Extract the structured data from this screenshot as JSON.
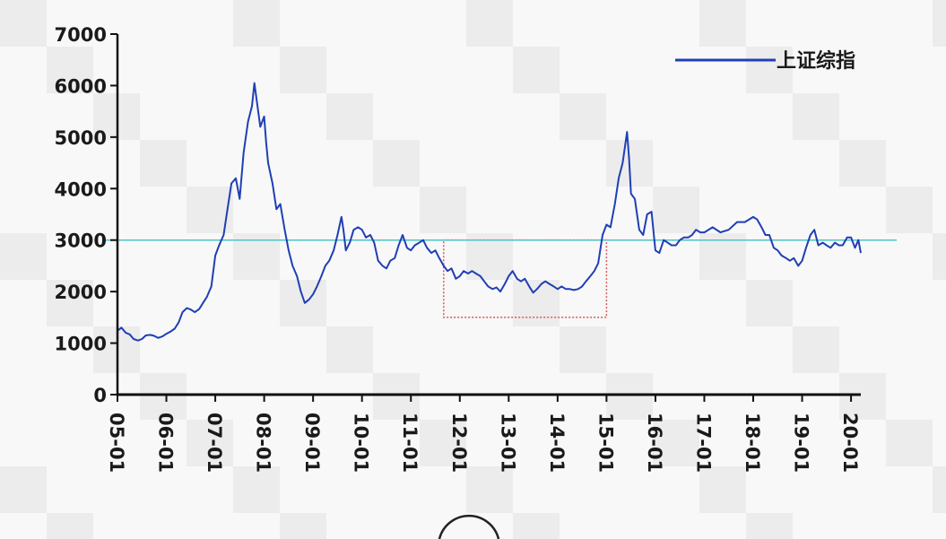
{
  "chart_data": {
    "type": "line",
    "title": "",
    "xlabel": "",
    "ylabel": "",
    "ylim": [
      0,
      7000
    ],
    "yticks": [
      0,
      1000,
      2000,
      3000,
      4000,
      5000,
      6000,
      7000
    ],
    "ytick_labels": [
      "0",
      "1000",
      "2000",
      "3000",
      "4000",
      "5000",
      "6000",
      "7000"
    ],
    "xlim": [
      2005.0,
      2020.2
    ],
    "xticks": [
      2005,
      2006,
      2007,
      2008,
      2009,
      2010,
      2011,
      2012,
      2013,
      2014,
      2015,
      2016,
      2017,
      2018,
      2019,
      2020
    ],
    "xtick_labels": [
      "05-01",
      "06-01",
      "07-01",
      "08-01",
      "09-01",
      "10-01",
      "11-01",
      "12-01",
      "13-01",
      "14-01",
      "15-01",
      "16-01",
      "17-01",
      "18-01",
      "19-01",
      "20-01"
    ],
    "grid": false,
    "legend_position": "top-right",
    "series": [
      {
        "name": "上证综指",
        "color": "#1f3fb5",
        "points": [
          [
            2005.0,
            1240
          ],
          [
            2005.08,
            1300
          ],
          [
            2005.17,
            1200
          ],
          [
            2005.25,
            1170
          ],
          [
            2005.33,
            1080
          ],
          [
            2005.42,
            1050
          ],
          [
            2005.5,
            1080
          ],
          [
            2005.58,
            1150
          ],
          [
            2005.67,
            1160
          ],
          [
            2005.75,
            1140
          ],
          [
            2005.83,
            1100
          ],
          [
            2005.92,
            1130
          ],
          [
            2006.0,
            1180
          ],
          [
            2006.08,
            1220
          ],
          [
            2006.17,
            1280
          ],
          [
            2006.25,
            1400
          ],
          [
            2006.33,
            1600
          ],
          [
            2006.42,
            1680
          ],
          [
            2006.5,
            1650
          ],
          [
            2006.58,
            1600
          ],
          [
            2006.67,
            1660
          ],
          [
            2006.75,
            1780
          ],
          [
            2006.83,
            1900
          ],
          [
            2006.92,
            2100
          ],
          [
            2007.0,
            2700
          ],
          [
            2007.08,
            2900
          ],
          [
            2007.17,
            3100
          ],
          [
            2007.25,
            3600
          ],
          [
            2007.33,
            4100
          ],
          [
            2007.42,
            4200
          ],
          [
            2007.5,
            3800
          ],
          [
            2007.58,
            4700
          ],
          [
            2007.67,
            5300
          ],
          [
            2007.75,
            5600
          ],
          [
            2007.8,
            6050
          ],
          [
            2007.85,
            5700
          ],
          [
            2007.92,
            5200
          ],
          [
            2008.0,
            5400
          ],
          [
            2008.04,
            4900
          ],
          [
            2008.08,
            4500
          ],
          [
            2008.17,
            4100
          ],
          [
            2008.25,
            3600
          ],
          [
            2008.33,
            3700
          ],
          [
            2008.42,
            3200
          ],
          [
            2008.5,
            2800
          ],
          [
            2008.58,
            2500
          ],
          [
            2008.67,
            2300
          ],
          [
            2008.75,
            2000
          ],
          [
            2008.83,
            1780
          ],
          [
            2008.92,
            1850
          ],
          [
            2009.0,
            1950
          ],
          [
            2009.08,
            2100
          ],
          [
            2009.17,
            2300
          ],
          [
            2009.25,
            2500
          ],
          [
            2009.33,
            2600
          ],
          [
            2009.42,
            2800
          ],
          [
            2009.5,
            3100
          ],
          [
            2009.58,
            3450
          ],
          [
            2009.62,
            3200
          ],
          [
            2009.67,
            2800
          ],
          [
            2009.75,
            2950
          ],
          [
            2009.83,
            3200
          ],
          [
            2009.92,
            3250
          ],
          [
            2010.0,
            3200
          ],
          [
            2010.08,
            3050
          ],
          [
            2010.17,
            3100
          ],
          [
            2010.25,
            2950
          ],
          [
            2010.33,
            2600
          ],
          [
            2010.42,
            2500
          ],
          [
            2010.5,
            2450
          ],
          [
            2010.58,
            2600
          ],
          [
            2010.67,
            2650
          ],
          [
            2010.75,
            2900
          ],
          [
            2010.83,
            3100
          ],
          [
            2010.92,
            2850
          ],
          [
            2011.0,
            2800
          ],
          [
            2011.08,
            2900
          ],
          [
            2011.17,
            2950
          ],
          [
            2011.25,
            3000
          ],
          [
            2011.33,
            2850
          ],
          [
            2011.42,
            2750
          ],
          [
            2011.5,
            2800
          ],
          [
            2011.58,
            2650
          ],
          [
            2011.67,
            2500
          ],
          [
            2011.75,
            2400
          ],
          [
            2011.83,
            2450
          ],
          [
            2011.92,
            2250
          ],
          [
            2012.0,
            2300
          ],
          [
            2012.08,
            2400
          ],
          [
            2012.17,
            2350
          ],
          [
            2012.25,
            2400
          ],
          [
            2012.33,
            2350
          ],
          [
            2012.42,
            2300
          ],
          [
            2012.5,
            2200
          ],
          [
            2012.58,
            2100
          ],
          [
            2012.67,
            2050
          ],
          [
            2012.75,
            2080
          ],
          [
            2012.83,
            2000
          ],
          [
            2012.92,
            2150
          ],
          [
            2013.0,
            2300
          ],
          [
            2013.08,
            2400
          ],
          [
            2013.17,
            2250
          ],
          [
            2013.25,
            2200
          ],
          [
            2013.33,
            2250
          ],
          [
            2013.42,
            2100
          ],
          [
            2013.5,
            1980
          ],
          [
            2013.58,
            2050
          ],
          [
            2013.67,
            2150
          ],
          [
            2013.75,
            2200
          ],
          [
            2013.83,
            2150
          ],
          [
            2013.92,
            2100
          ],
          [
            2014.0,
            2050
          ],
          [
            2014.08,
            2100
          ],
          [
            2014.17,
            2050
          ],
          [
            2014.25,
            2050
          ],
          [
            2014.33,
            2030
          ],
          [
            2014.42,
            2050
          ],
          [
            2014.5,
            2100
          ],
          [
            2014.58,
            2200
          ],
          [
            2014.67,
            2300
          ],
          [
            2014.75,
            2400
          ],
          [
            2014.83,
            2550
          ],
          [
            2014.92,
            3100
          ],
          [
            2015.0,
            3300
          ],
          [
            2015.08,
            3250
          ],
          [
            2015.17,
            3700
          ],
          [
            2015.25,
            4200
          ],
          [
            2015.33,
            4500
          ],
          [
            2015.42,
            5100
          ],
          [
            2015.46,
            4600
          ],
          [
            2015.5,
            3900
          ],
          [
            2015.58,
            3800
          ],
          [
            2015.67,
            3200
          ],
          [
            2015.75,
            3100
          ],
          [
            2015.83,
            3500
          ],
          [
            2015.92,
            3550
          ],
          [
            2016.0,
            2800
          ],
          [
            2016.08,
            2750
          ],
          [
            2016.17,
            3000
          ],
          [
            2016.25,
            2950
          ],
          [
            2016.33,
            2900
          ],
          [
            2016.42,
            2900
          ],
          [
            2016.5,
            3000
          ],
          [
            2016.58,
            3050
          ],
          [
            2016.67,
            3050
          ],
          [
            2016.75,
            3100
          ],
          [
            2016.83,
            3200
          ],
          [
            2016.92,
            3150
          ],
          [
            2017.0,
            3150
          ],
          [
            2017.17,
            3250
          ],
          [
            2017.33,
            3150
          ],
          [
            2017.5,
            3200
          ],
          [
            2017.67,
            3350
          ],
          [
            2017.83,
            3350
          ],
          [
            2018.0,
            3450
          ],
          [
            2018.08,
            3400
          ],
          [
            2018.17,
            3250
          ],
          [
            2018.25,
            3100
          ],
          [
            2018.33,
            3100
          ],
          [
            2018.42,
            2850
          ],
          [
            2018.5,
            2800
          ],
          [
            2018.58,
            2700
          ],
          [
            2018.67,
            2650
          ],
          [
            2018.75,
            2600
          ],
          [
            2018.83,
            2650
          ],
          [
            2018.92,
            2500
          ],
          [
            2019.0,
            2600
          ],
          [
            2019.08,
            2850
          ],
          [
            2019.17,
            3100
          ],
          [
            2019.25,
            3200
          ],
          [
            2019.33,
            2900
          ],
          [
            2019.42,
            2950
          ],
          [
            2019.5,
            2900
          ],
          [
            2019.58,
            2850
          ],
          [
            2019.67,
            2950
          ],
          [
            2019.75,
            2900
          ],
          [
            2019.83,
            2900
          ],
          [
            2019.92,
            3050
          ],
          [
            2020.0,
            3050
          ],
          [
            2020.08,
            2850
          ],
          [
            2020.15,
            3000
          ],
          [
            2020.2,
            2750
          ]
        ]
      }
    ],
    "reference_line": {
      "y": 3000,
      "color": "#4fc3c3"
    },
    "highlight_box": {
      "x0": 2011.67,
      "x1": 2015.0,
      "y0": 1500,
      "y1": 3000,
      "color": "#e06060"
    }
  }
}
